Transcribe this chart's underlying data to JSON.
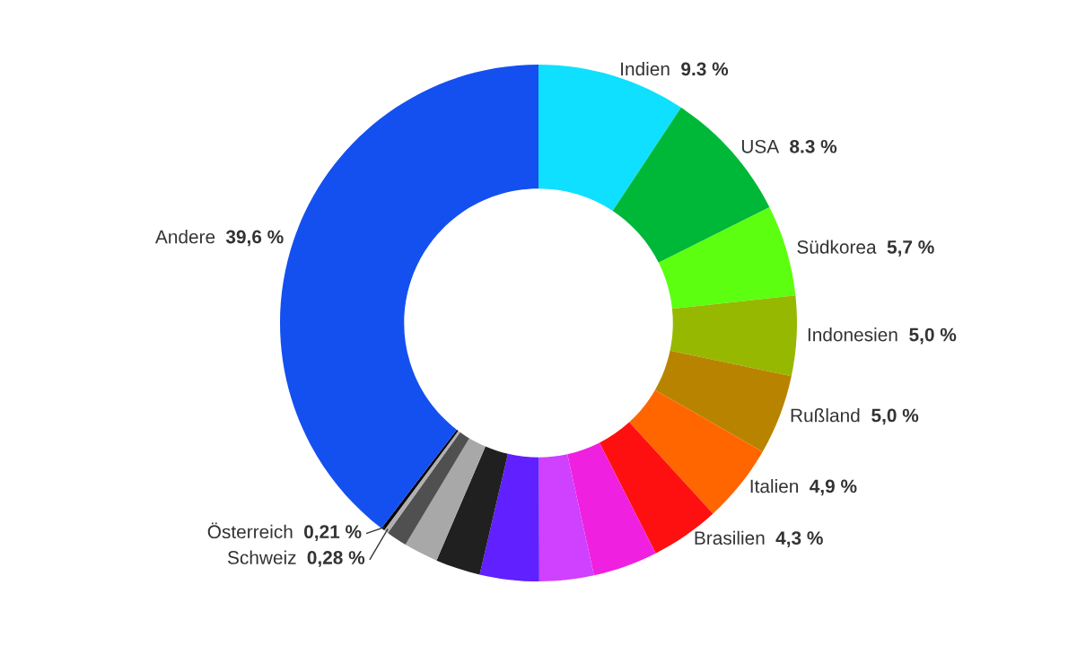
{
  "chart_data": {
    "type": "donut",
    "categories": [
      "Indien",
      "USA",
      "Südkorea",
      "Indonesien",
      "Rußland",
      "Italien",
      "Brasilien",
      null,
      null,
      null,
      null,
      null,
      null,
      "Schweiz",
      "Österreich",
      "Andere"
    ],
    "values": [
      9.3,
      8.3,
      5.7,
      5.0,
      5.0,
      4.9,
      4.3,
      4.05,
      3.4,
      3.7,
      2.8,
      2.15,
      1.3,
      0.28,
      0.21,
      39.6
    ],
    "colors": [
      "#10e0ff",
      "#00b837",
      "#5cff10",
      "#96b800",
      "#b88400",
      "#ff6600",
      "#ff1010",
      "#f020e0",
      "#d040ff",
      "#6020ff",
      "#202020",
      "#a8a8a8",
      "#505050",
      "#b0b0b0",
      "#000000",
      "#1450f0"
    ],
    "value_labels": [
      "9.3 %",
      "8.3 %",
      "5,7 %",
      "5,0 %",
      "5,0 %",
      "4,9 %",
      "4,3 %",
      null,
      null,
      null,
      null,
      null,
      null,
      "0,28 %",
      "0,21 %",
      "39,6 %"
    ]
  }
}
